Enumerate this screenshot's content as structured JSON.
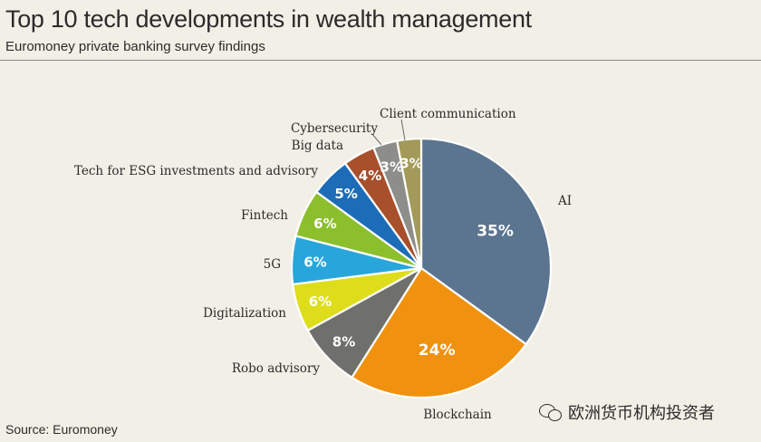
{
  "title": "Top 10 tech developments in wealth management",
  "subtitle": "Euromoney private banking survey findings",
  "source": "Source: Euromoney",
  "watermark": "欧洲货币机构投资者",
  "chart_data": {
    "type": "pie",
    "slices": [
      {
        "label": "AI",
        "value": 35,
        "value_label": "35%",
        "color": "#5b7490"
      },
      {
        "label": "Blockchain",
        "value": 24,
        "value_label": "24%",
        "color": "#f0920f"
      },
      {
        "label": "Robo advisory",
        "value": 8,
        "value_label": "8%",
        "color": "#6f6f6c"
      },
      {
        "label": "Digitalization",
        "value": 6,
        "value_label": "6%",
        "color": "#dedd1c"
      },
      {
        "label": "5G",
        "value": 6,
        "value_label": "6%",
        "color": "#28a6dc"
      },
      {
        "label": "Fintech",
        "value": 6,
        "value_label": "6%",
        "color": "#8cbf2c"
      },
      {
        "label": "Tech for ESG investments and advisory",
        "value": 5,
        "value_label": "5%",
        "color": "#1c6cb8"
      },
      {
        "label": "Big data",
        "value": 4,
        "value_label": "4%",
        "color": "#a84f2c"
      },
      {
        "label": "Cybersecurity",
        "value": 3,
        "value_label": "3%",
        "color": "#8d8d8a"
      },
      {
        "label": "Client communication",
        "value": 3,
        "value_label": "3%",
        "color": "#a39a5a"
      }
    ]
  }
}
